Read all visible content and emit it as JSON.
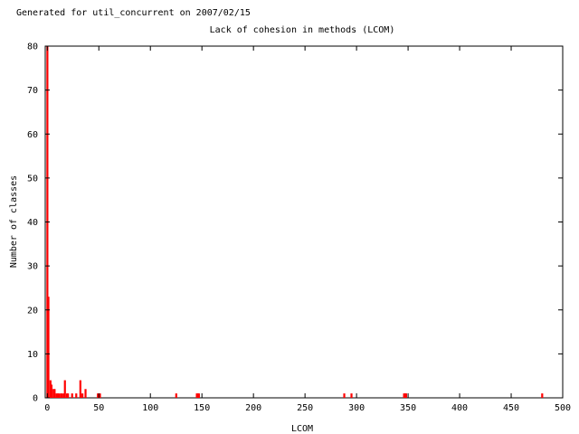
{
  "chart_data": {
    "type": "bar",
    "header": "Generated for util_concurrent on 2007/02/15",
    "title": "Lack of cohesion in methods (LCOM)",
    "xlabel": "LCOM",
    "ylabel": "Number of classes",
    "xlim": [
      -2,
      500
    ],
    "ylim": [
      0,
      80
    ],
    "xticks": [
      0,
      50,
      100,
      150,
      200,
      250,
      300,
      350,
      400,
      450,
      500
    ],
    "yticks": [
      0,
      10,
      20,
      30,
      40,
      50,
      60,
      70,
      80
    ],
    "bar_color": "#ff0000",
    "grid": false,
    "x": [
      0,
      1,
      3,
      4,
      6,
      7,
      9,
      10,
      11,
      13,
      14,
      16,
      17,
      19,
      20,
      24,
      28,
      32,
      34,
      37,
      49,
      51,
      125,
      145,
      146,
      147,
      288,
      295,
      346,
      347,
      348,
      480
    ],
    "values": [
      80,
      23,
      4,
      3,
      2,
      2,
      1,
      1,
      1,
      1,
      1,
      1,
      4,
      1,
      1,
      1,
      1,
      4,
      1,
      2,
      1,
      1,
      1,
      1,
      1,
      1,
      1,
      1,
      1,
      1,
      1,
      1
    ]
  }
}
